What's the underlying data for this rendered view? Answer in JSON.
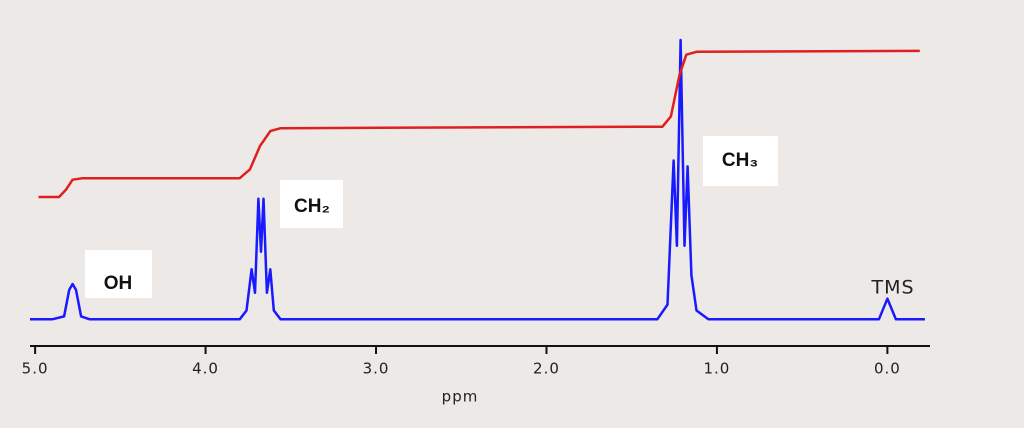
{
  "chart_data": {
    "type": "line",
    "x_label": "ppm",
    "xlim": [
      5.03,
      -0.25
    ],
    "xticks": [
      {
        "value": 5,
        "label": "5.0"
      },
      {
        "value": 4,
        "label": "4.0"
      },
      {
        "value": 3,
        "label": "3.0"
      },
      {
        "value": 2,
        "label": "2.0"
      },
      {
        "value": 1,
        "label": "1.0"
      },
      {
        "value": 0,
        "label": "0.0"
      }
    ],
    "ylim": [
      0,
      100
    ],
    "series": [
      {
        "color": "#1a1aff",
        "x": [
          5.03,
          4.9,
          4.83,
          4.8,
          4.78,
          4.76,
          4.73,
          4.68,
          3.8,
          3.76,
          3.73,
          3.71,
          3.69,
          3.675,
          3.66,
          3.64,
          3.62,
          3.6,
          3.56,
          1.35,
          1.29,
          1.254,
          1.235,
          1.213,
          1.19,
          1.172,
          1.15,
          1.12,
          1.05,
          0.05,
          0.0,
          -0.05,
          -0.22
        ],
        "values": [
          5,
          5,
          6,
          15,
          17,
          15,
          6,
          5,
          5,
          8,
          22,
          14,
          46,
          28,
          46,
          14,
          22,
          8,
          5,
          5,
          10,
          59,
          30,
          100,
          30,
          57,
          20,
          8,
          5,
          5,
          12,
          5,
          5
        ]
      },
      {
        "color": "#e02020",
        "x": [
          4.98,
          4.86,
          4.82,
          4.78,
          4.72,
          3.8,
          3.74,
          3.68,
          3.62,
          3.56,
          1.32,
          1.27,
          1.22,
          1.18,
          1.12,
          -0.19
        ],
        "values": [
          46.6,
          46.6,
          49,
          52.5,
          53,
          53,
          56,
          64,
          69,
          70,
          70.5,
          74,
          88,
          95,
          96,
          96.3
        ]
      }
    ],
    "annotations": [
      "OH",
      "CH₂",
      "CH₃",
      "TMS"
    ]
  }
}
